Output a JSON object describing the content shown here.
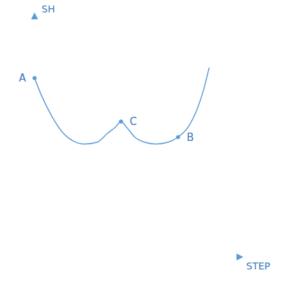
{
  "chart_data": {
    "type": "line",
    "x_label": "STEP",
    "y_label": "SH",
    "xlim": [
      0,
      12
    ],
    "ylim": [
      0,
      14
    ],
    "tick_labels": false,
    "grid": false,
    "color": "#5b9bd5",
    "x": [
      0,
      0.4,
      1,
      1.6,
      2.2,
      2.9,
      3.6,
      4.2,
      4.7,
      5,
      5.3,
      5.8,
      6.4,
      7,
      7.7,
      8.3,
      8.9,
      9.4,
      9.8,
      10.1
    ],
    "values": [
      10.3,
      9.3,
      8.1,
      7.2,
      6.7,
      6.5,
      6.6,
      7.1,
      7.5,
      7.8,
      7.5,
      6.9,
      6.6,
      6.5,
      6.6,
      6.9,
      7.5,
      8.5,
      9.7,
      10.9
    ],
    "annotations": [
      {
        "text": "A",
        "x": 0,
        "y": 10.3
      },
      {
        "text": "C",
        "x": 5,
        "y": 7.8
      },
      {
        "text": "B",
        "x": 8.3,
        "y": 6.9
      }
    ]
  }
}
